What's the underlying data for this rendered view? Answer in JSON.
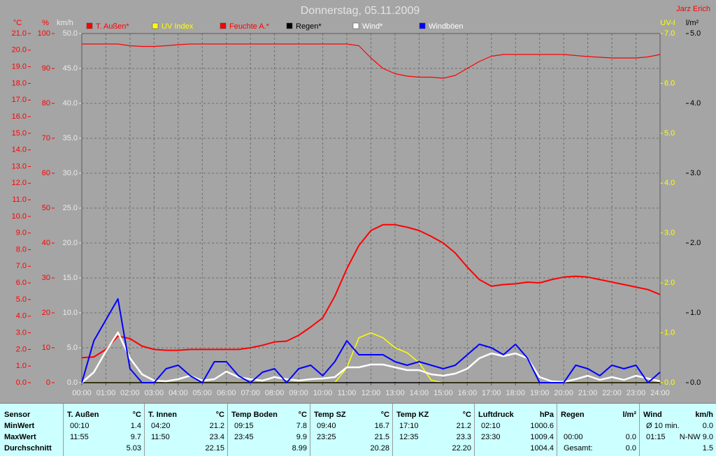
{
  "chart_data": {
    "type": "line",
    "title": "Donnerstag, 05.11.2009",
    "author": "Jarz Erich",
    "x": [
      0,
      0.5,
      1,
      1.5,
      2,
      2.5,
      3,
      3.5,
      4,
      4.5,
      5,
      5.5,
      6,
      6.5,
      7,
      7.5,
      8,
      8.5,
      9,
      9.5,
      10,
      10.5,
      11,
      11.5,
      12,
      12.5,
      13,
      13.5,
      14,
      14.5,
      15,
      15.5,
      16,
      16.5,
      17,
      17.5,
      18,
      18.5,
      19,
      19.5,
      20,
      20.5,
      21,
      21.5,
      22,
      22.5,
      23,
      23.5,
      24
    ],
    "xlim": [
      0,
      24
    ],
    "xticks": [
      {
        "value": 0,
        "label": "00:00"
      },
      {
        "value": 1,
        "label": "01:00"
      },
      {
        "value": 2,
        "label": "02:00"
      },
      {
        "value": 3,
        "label": "03:00"
      },
      {
        "value": 4,
        "label": "04:00"
      },
      {
        "value": 5,
        "label": "05:00"
      },
      {
        "value": 6,
        "label": "06:00"
      },
      {
        "value": 7,
        "label": "07:00"
      },
      {
        "value": 8,
        "label": "08:00"
      },
      {
        "value": 9,
        "label": "09:00"
      },
      {
        "value": 10,
        "label": "10:00"
      },
      {
        "value": 11,
        "label": "11:00"
      },
      {
        "value": 12,
        "label": "12:00"
      },
      {
        "value": 13,
        "label": "13:00"
      },
      {
        "value": 14,
        "label": "14:00"
      },
      {
        "value": 15,
        "label": "15:00"
      },
      {
        "value": 16,
        "label": "16:00"
      },
      {
        "value": 17,
        "label": "17:00"
      },
      {
        "value": 18,
        "label": "18:00"
      },
      {
        "value": 19,
        "label": "19:00"
      },
      {
        "value": 20,
        "label": "20:00"
      },
      {
        "value": 21,
        "label": "21:00"
      },
      {
        "value": 22,
        "label": "22:00"
      },
      {
        "value": 23,
        "label": "23:00"
      },
      {
        "value": 24,
        "label": "24:00"
      }
    ],
    "grid": true,
    "axes": {
      "y": {
        "label": "°C",
        "color": "#ff0000",
        "lim": [
          0,
          21
        ],
        "ticks": [
          {
            "value": 0,
            "label": "0.0"
          },
          {
            "value": 1,
            "label": "1.0"
          },
          {
            "value": 2,
            "label": "2.0"
          },
          {
            "value": 3,
            "label": "3.0"
          },
          {
            "value": 4,
            "label": "4.0"
          },
          {
            "value": 5,
            "label": "5.0"
          },
          {
            "value": 6,
            "label": "6.0"
          },
          {
            "value": 7,
            "label": "7.0"
          },
          {
            "value": 8,
            "label": "8.0"
          },
          {
            "value": 9,
            "label": "9.0"
          },
          {
            "value": 10,
            "label": "10.0"
          },
          {
            "value": 11,
            "label": "11.0"
          },
          {
            "value": 12,
            "label": "12.0"
          },
          {
            "value": 13,
            "label": "13.0"
          },
          {
            "value": 14,
            "label": "14.0"
          },
          {
            "value": 15,
            "label": "15.0"
          },
          {
            "value": 16,
            "label": "16.0"
          },
          {
            "value": 17,
            "label": "17.0"
          },
          {
            "value": 18,
            "label": "18.0"
          },
          {
            "value": 19,
            "label": "19.0"
          },
          {
            "value": 20,
            "label": "20.0"
          },
          {
            "value": 21,
            "label": "21.0"
          }
        ]
      },
      "y2": {
        "label": "%",
        "color": "#ff0000",
        "lim": [
          0,
          100
        ],
        "ticks": [
          0,
          10,
          20,
          30,
          40,
          50,
          60,
          70,
          80,
          90,
          100
        ]
      },
      "y3": {
        "label": "km/h",
        "color": "#ececec",
        "lim": [
          0,
          50
        ],
        "grid": true,
        "ticks": [
          {
            "value": 0,
            "label": "0.0"
          },
          {
            "value": 5,
            "label": "5.0"
          },
          {
            "value": 10,
            "label": "10.0"
          },
          {
            "value": 15,
            "label": "15.0"
          },
          {
            "value": 20,
            "label": "20.0"
          },
          {
            "value": 25,
            "label": "25.0"
          },
          {
            "value": 30,
            "label": "30.0"
          },
          {
            "value": 35,
            "label": "35.0"
          },
          {
            "value": 40,
            "label": "40.0"
          },
          {
            "value": 45,
            "label": "45.0"
          },
          {
            "value": 50,
            "label": "50.0"
          }
        ]
      },
      "y4": {
        "label": "UV-I",
        "color": "#ffff00",
        "lim": [
          0,
          7
        ],
        "ticks": [
          {
            "value": 0,
            "label": "0.0"
          },
          {
            "value": 1,
            "label": "1.0"
          },
          {
            "value": 2,
            "label": "2.0"
          },
          {
            "value": 3,
            "label": "3.0"
          },
          {
            "value": 4,
            "label": "4.0"
          },
          {
            "value": 5,
            "label": "5.0"
          },
          {
            "value": 6,
            "label": "6.0"
          },
          {
            "value": 7,
            "label": "7.0"
          }
        ]
      },
      "y5": {
        "label": "l/m²",
        "color": "#000000",
        "lim": [
          0,
          5
        ],
        "ticks": [
          {
            "value": 0,
            "label": "0.0"
          },
          {
            "value": 1,
            "label": "1.0"
          },
          {
            "value": 2,
            "label": "2.0"
          },
          {
            "value": 3,
            "label": "3.0"
          },
          {
            "value": 4,
            "label": "4.0"
          },
          {
            "value": 5,
            "label": "5.0"
          }
        ]
      }
    },
    "series": [
      {
        "name": "T. Außen*",
        "color": "#ff0000",
        "legend_text_color": "#ff0000",
        "axis": "y",
        "width": 2,
        "values": [
          1.5,
          1.55,
          2.0,
          2.8,
          2.65,
          2.2,
          2.0,
          1.95,
          1.95,
          2.0,
          2.0,
          2.0,
          2.0,
          2.0,
          2.1,
          2.25,
          2.45,
          2.5,
          2.85,
          3.35,
          3.9,
          5.2,
          6.85,
          8.25,
          9.15,
          9.5,
          9.5,
          9.35,
          9.15,
          8.8,
          8.4,
          7.8,
          6.95,
          6.2,
          5.8,
          5.9,
          5.95,
          6.05,
          6.0,
          6.2,
          6.35,
          6.4,
          6.35,
          6.2,
          6.05,
          5.9,
          5.75,
          5.6,
          5.3
        ]
      },
      {
        "name": "UV Index",
        "color": "#ffff00",
        "legend_text_color": "#ffff00",
        "axis": "y4",
        "width": 1.5,
        "values": [
          0,
          0,
          0,
          0,
          0,
          0,
          0,
          0,
          0,
          0,
          0,
          0,
          0,
          0,
          0,
          0,
          0,
          0,
          0,
          0,
          0,
          0,
          0.3,
          0.9,
          1.0,
          0.9,
          0.7,
          0.6,
          0.4,
          0.05,
          0,
          0,
          0,
          0,
          0,
          0,
          0,
          0,
          0,
          0,
          0,
          0,
          0,
          0,
          0,
          0,
          0,
          0,
          0
        ]
      },
      {
        "name": "Feuchte A.*",
        "color": "#ff0000",
        "legend_text_color": "#ff0000",
        "axis": "y2",
        "width": 1.2,
        "values": [
          97,
          97,
          97,
          97,
          96.5,
          96.3,
          96.3,
          96.5,
          96.8,
          97,
          97,
          97,
          97,
          97,
          97,
          97,
          97,
          97,
          97,
          97,
          97,
          97,
          97,
          96.5,
          93,
          90,
          88.5,
          87.8,
          87.5,
          87.5,
          87.2,
          88,
          90,
          92,
          93.5,
          94,
          94,
          94,
          94,
          94,
          94,
          93.7,
          93.4,
          93.2,
          93,
          93,
          93,
          93.3,
          94
        ]
      },
      {
        "name": "Regen*",
        "color": "#000000",
        "legend_text_color": "#000000",
        "axis": "y5",
        "width": 1.5,
        "values": [
          0,
          0,
          0,
          0,
          0,
          0,
          0,
          0,
          0,
          0,
          0,
          0,
          0,
          0,
          0,
          0,
          0,
          0,
          0,
          0,
          0,
          0,
          0,
          0,
          0,
          0,
          0,
          0,
          0,
          0,
          0,
          0,
          0,
          0,
          0,
          0,
          0,
          0,
          0,
          0,
          0,
          0,
          0,
          0,
          0,
          0,
          0,
          0,
          0
        ]
      },
      {
        "name": "Wind*",
        "color": "#ffffff",
        "legend_text_color": "#ffffff",
        "axis": "y3",
        "width": 2.5,
        "values": [
          0,
          1.5,
          4.5,
          7.2,
          3.5,
          1.2,
          0.3,
          0.2,
          0.5,
          1.0,
          0.3,
          0.5,
          1.6,
          0.8,
          0.5,
          0.3,
          0.8,
          0.5,
          0.3,
          0.5,
          0.6,
          0.8,
          2.2,
          2.2,
          2.6,
          2.6,
          2.2,
          1.8,
          1.8,
          1.2,
          1.0,
          1.3,
          2.0,
          3.5,
          4.2,
          3.8,
          4.2,
          3.5,
          0.8,
          0.2,
          0.1,
          0.5,
          1.0,
          0.4,
          0.8,
          0.4,
          1.0,
          0.6,
          0.2
        ]
      },
      {
        "name": "Windböen",
        "color": "#0000ff",
        "legend_text_color": "#ffffff",
        "axis": "y3",
        "width": 2,
        "values": [
          0,
          6,
          9,
          12,
          2,
          0,
          0,
          2,
          2.5,
          1,
          0,
          3,
          3,
          1,
          0,
          1.5,
          2,
          0,
          2,
          2.5,
          1,
          3,
          6,
          4,
          4,
          4,
          3,
          2.5,
          3,
          2.5,
          2,
          2.5,
          4,
          5.5,
          5,
          4,
          5.5,
          3.5,
          0,
          0,
          0,
          2.5,
          2,
          1,
          2.5,
          2,
          2.5,
          0,
          1.5
        ]
      }
    ]
  },
  "table": {
    "row_labels": [
      "Sensor",
      "MinWert",
      "MaxWert",
      "Durchschnitt"
    ],
    "columns": [
      {
        "header": "T. Außen",
        "unit": "°C",
        "rows": [
          {
            "time": "00:10",
            "value": "1.4"
          },
          {
            "time": "11:55",
            "value": "9.7"
          },
          {
            "value": "5.03"
          }
        ]
      },
      {
        "header": "T. Innen",
        "unit": "°C",
        "rows": [
          {
            "time": "04:20",
            "value": "21.2"
          },
          {
            "time": "11:50",
            "value": "23.4"
          },
          {
            "value": "22.15"
          }
        ]
      },
      {
        "header": "Temp Boden",
        "unit": "°C",
        "rows": [
          {
            "time": "09:15",
            "value": "7.8"
          },
          {
            "time": "23:45",
            "value": "9.9"
          },
          {
            "value": "8.99"
          }
        ]
      },
      {
        "header": "Temp SZ",
        "unit": "°C",
        "rows": [
          {
            "time": "09:40",
            "value": "16.7"
          },
          {
            "time": "23:25",
            "value": "21.5"
          },
          {
            "value": "20.28"
          }
        ]
      },
      {
        "header": "Temp KZ",
        "unit": "°C",
        "rows": [
          {
            "time": "17:10",
            "value": "21.2"
          },
          {
            "time": "12:35",
            "value": "23.3"
          },
          {
            "value": "22.20"
          }
        ]
      },
      {
        "header": "Luftdruck",
        "unit": "hPa",
        "rows": [
          {
            "time": "02:10",
            "value": "1000.6"
          },
          {
            "time": "23:30",
            "value": "1009.4"
          },
          {
            "value": "1004.4"
          }
        ]
      },
      {
        "header": "Regen",
        "unit": "l/m²",
        "rows": [
          null,
          {
            "time": "00:00",
            "value": "0.0"
          },
          {
            "time": "Gesamt:",
            "value": "0.0"
          }
        ]
      },
      {
        "header": "Wind",
        "unit": "km/h",
        "rows": [
          {
            "time": "Ø 10 min.",
            "value": "0.0"
          },
          {
            "time": "01:15",
            "value": "N-NW 9.0"
          },
          {
            "value": "1.5"
          }
        ]
      }
    ]
  }
}
